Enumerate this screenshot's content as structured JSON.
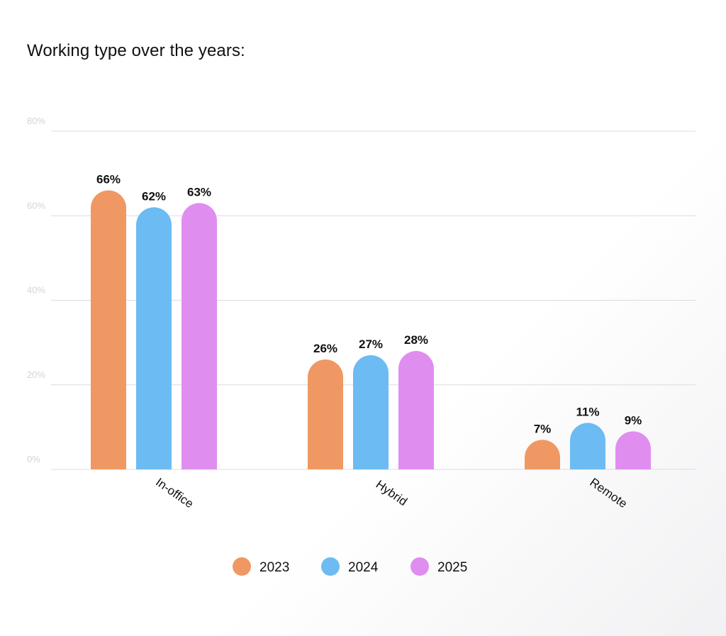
{
  "chart_data": {
    "type": "bar",
    "title": "Working type over the years:",
    "categories": [
      "In-office",
      "Hybrid",
      "Remote"
    ],
    "series": [
      {
        "name": "2023",
        "values": [
          66,
          26,
          7
        ],
        "labels": [
          "66%",
          "26%",
          "7%"
        ],
        "color": "#F09863"
      },
      {
        "name": "2024",
        "values": [
          62,
          27,
          11
        ],
        "labels": [
          "62%",
          "27%",
          "11%"
        ],
        "color": "#6CBBF2"
      },
      {
        "name": "2025",
        "values": [
          63,
          28,
          9
        ],
        "labels": [
          "63%",
          "28%",
          "9%"
        ],
        "color": "#E08DF0"
      }
    ],
    "yticks": [
      0,
      20,
      40,
      60,
      80
    ],
    "ytick_labels": [
      "0%",
      "20%",
      "40%",
      "60%",
      "80%"
    ],
    "ylim": [
      0,
      80
    ],
    "grid": true,
    "legend_position": "bottom-center"
  }
}
